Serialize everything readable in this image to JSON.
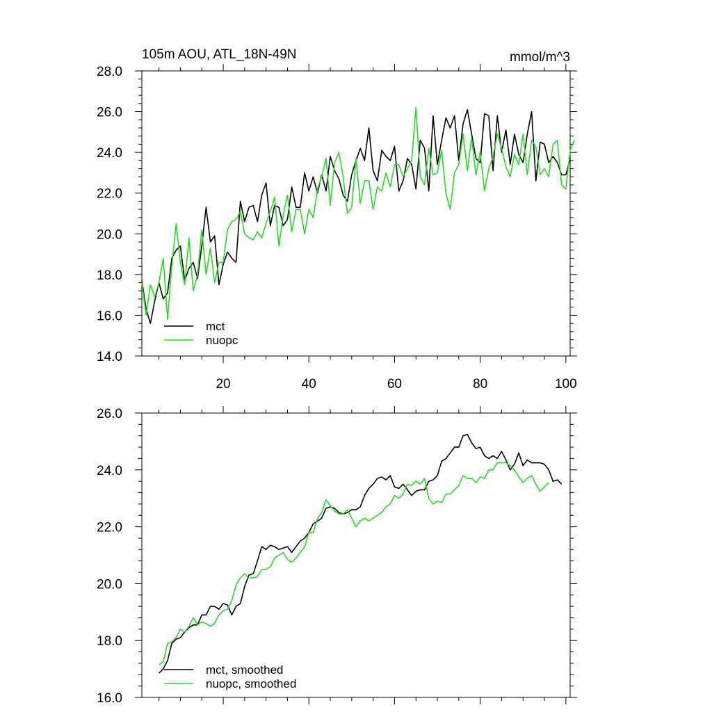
{
  "colors": {
    "mct": "#000000",
    "nuopc": "#22dd22"
  },
  "chart_data": [
    {
      "type": "line",
      "title": "105m AOU, ATL_18N-49N",
      "units": "mmol/m^3",
      "xlabel": "",
      "ylabel": "",
      "xlim": [
        1,
        101
      ],
      "ylim": [
        14,
        28
      ],
      "xticks": [
        20,
        40,
        60,
        80,
        100
      ],
      "yticks": [
        14,
        16,
        18,
        20,
        22,
        24,
        26,
        28
      ],
      "ytick_labels": [
        "14.0",
        "16.0",
        "18.0",
        "20.0",
        "22.0",
        "24.0",
        "26.0",
        "28.0"
      ],
      "legend_position": "bottom-left",
      "series": [
        {
          "name": "mct",
          "color": "#000000",
          "x_start": 1,
          "values": [
            17.7,
            16.3,
            15.6,
            16.7,
            17.6,
            16.8,
            17.1,
            18.8,
            19.2,
            19.4,
            17.7,
            18.3,
            18.6,
            17.8,
            19.4,
            21.3,
            19.6,
            19.9,
            17.5,
            18.5,
            19.1,
            18.8,
            18.6,
            21.6,
            20.6,
            21.3,
            21.4,
            20.6,
            21.9,
            22.5,
            20.4,
            21.4,
            21.3,
            20.4,
            20.7,
            22.3,
            21.3,
            21.3,
            23.0,
            22.1,
            22.8,
            22.0,
            22.9,
            22.1,
            23.8,
            23.1,
            22.7,
            21.9,
            21.6,
            22.9,
            23.6,
            24.2,
            23.6,
            25.2,
            23.1,
            22.6,
            24.1,
            23.8,
            23.6,
            24.3,
            22.1,
            22.6,
            23.7,
            23.4,
            22.2,
            24.6,
            24.2,
            22.1,
            25.8,
            23.4,
            24.6,
            25.7,
            25.2,
            25.8,
            23.6,
            25.4,
            26.1,
            24.9,
            23.7,
            23.5,
            25.9,
            25.8,
            23.1,
            25.8,
            24.0,
            25.1,
            23.4,
            24.9,
            23.9,
            23.5,
            24.9,
            26.0,
            22.6,
            24.5,
            24.4,
            23.5,
            23.8,
            23.5,
            22.9,
            22.9,
            23.7
          ]
        },
        {
          "name": "nuopc",
          "color": "#22dd22",
          "x_start": 1,
          "values": [
            17.6,
            16.0,
            17.5,
            16.9,
            17.6,
            18.8,
            15.8,
            18.4,
            20.5,
            18.6,
            17.5,
            19.8,
            17.2,
            18.0,
            20.2,
            18.0,
            19.3,
            17.6,
            18.6,
            18.6,
            20.2,
            20.6,
            20.7,
            21.1,
            20.0,
            19.8,
            19.7,
            20.1,
            19.8,
            20.5,
            21.1,
            21.8,
            19.4,
            20.9,
            21.9,
            20.1,
            21.2,
            21.2,
            20.0,
            21.2,
            20.8,
            22.2,
            22.8,
            23.7,
            21.4,
            23.5,
            24.0,
            22.8,
            21.0,
            21.3,
            23.7,
            21.5,
            22.6,
            22.6,
            21.2,
            22.3,
            22.1,
            23.0,
            22.3,
            23.4,
            23.4,
            22.8,
            23.2,
            23.6,
            26.2,
            22.8,
            22.4,
            24.2,
            22.9,
            23.0,
            24.1,
            22.0,
            21.2,
            23.0,
            23.4,
            24.9,
            23.1,
            24.7,
            22.9,
            24.0,
            22.1,
            23.2,
            23.8,
            24.9,
            24.2,
            23.3,
            22.8,
            23.9,
            23.4,
            24.9,
            22.9,
            24.6,
            24.3,
            22.9,
            23.2,
            22.8,
            24.4,
            24.6,
            22.4,
            22.2,
            24.1,
            24.6
          ]
        }
      ]
    },
    {
      "type": "line",
      "title": "",
      "units": "",
      "xlabel": "",
      "ylabel": "",
      "xlim": [
        1,
        101
      ],
      "ylim": [
        16,
        26
      ],
      "xticks": [
        20,
        40,
        60,
        80,
        100
      ],
      "yticks": [
        16,
        18,
        20,
        22,
        24,
        26
      ],
      "ytick_labels": [
        "16.0",
        "18.0",
        "20.0",
        "22.0",
        "24.0",
        "26.0"
      ],
      "legend_position": "bottom-left",
      "series": [
        {
          "name": "mct, smoothed",
          "color": "#000000",
          "x_start": 5,
          "values": [
            16.85,
            17.0,
            17.3,
            17.9,
            18.05,
            18.1,
            18.3,
            18.45,
            18.55,
            18.55,
            18.9,
            18.9,
            19.2,
            19.2,
            19.1,
            19.3,
            19.25,
            18.9,
            19.2,
            19.3,
            19.9,
            20.3,
            20.35,
            20.8,
            21.3,
            21.2,
            21.35,
            21.3,
            21.2,
            21.25,
            21.3,
            21.1,
            21.3,
            21.5,
            21.6,
            21.8,
            22.1,
            22.2,
            22.3,
            22.65,
            22.7,
            22.65,
            22.5,
            22.45,
            22.5,
            22.6,
            22.6,
            22.7,
            23.1,
            23.35,
            23.5,
            23.7,
            23.75,
            23.65,
            23.8,
            23.4,
            23.35,
            23.5,
            23.3,
            23.1,
            23.25,
            23.3,
            23.3,
            23.6,
            23.65,
            23.8,
            24.3,
            24.4,
            24.6,
            24.8,
            24.8,
            25.2,
            25.25,
            24.95,
            24.75,
            24.8,
            24.5,
            24.4,
            24.5,
            24.4,
            24.65,
            24.35,
            24.0,
            24.2,
            24.6,
            24.15,
            24.35,
            24.25,
            24.25,
            24.25,
            24.2,
            24.0,
            23.6,
            23.65,
            23.5
          ]
        },
        {
          "name": "nuopc, smoothed",
          "color": "#22dd22",
          "x_start": 5,
          "values": [
            17.15,
            17.25,
            17.9,
            17.95,
            18.1,
            18.4,
            18.3,
            18.5,
            18.8,
            18.55,
            18.65,
            18.6,
            18.5,
            18.6,
            18.9,
            19.05,
            19.1,
            19.4,
            19.95,
            20.2,
            20.35,
            20.2,
            20.2,
            20.25,
            20.5,
            20.5,
            20.6,
            20.9,
            21.0,
            21.1,
            20.85,
            20.75,
            20.9,
            21.1,
            21.3,
            21.8,
            21.8,
            22.3,
            22.5,
            22.95,
            22.75,
            22.55,
            22.45,
            22.45,
            22.6,
            22.3,
            22.0,
            22.2,
            22.3,
            22.2,
            22.3,
            22.4,
            22.5,
            22.7,
            22.8,
            23.1,
            23.0,
            23.15,
            23.5,
            23.45,
            23.6,
            23.5,
            23.7,
            23.0,
            22.8,
            22.9,
            22.85,
            23.15,
            23.15,
            23.3,
            23.45,
            23.8,
            23.7,
            23.7,
            23.55,
            23.75,
            23.7,
            24.0,
            24.0,
            24.25,
            24.25,
            24.25,
            24.15,
            24.0,
            23.75,
            23.55,
            23.7,
            23.8,
            23.5,
            23.25,
            23.4,
            23.55
          ]
        }
      ]
    }
  ]
}
